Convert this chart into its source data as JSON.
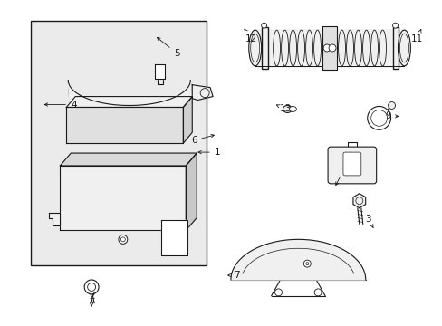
{
  "background_color": "#ffffff",
  "figure_width": 4.89,
  "figure_height": 3.6,
  "dpi": 100,
  "line_color": "#1a1a1a",
  "gray_fill": "#e0e0e0",
  "light_gray": "#f0f0f0",
  "label_fontsize": 7.5
}
